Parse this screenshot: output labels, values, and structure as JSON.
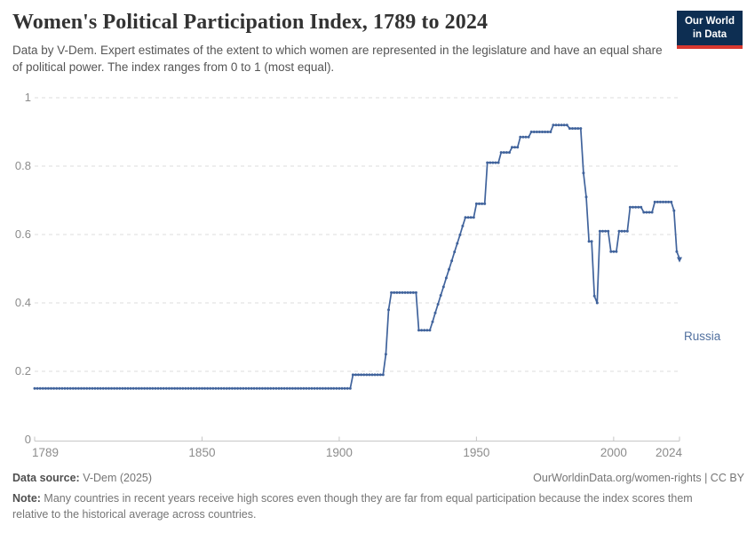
{
  "header": {
    "title": "Women's Political Participation Index, 1789 to 2024",
    "subtitle": "Data by V-Dem. Expert estimates of the extent to which women are represented in the legislature and have an equal share of political power. The index ranges from 0 to 1 (most equal)."
  },
  "logo": {
    "line1": "Our World",
    "line2": "in Data",
    "bg_color": "#0d2e52",
    "accent_color": "#d8382f"
  },
  "chart_data": {
    "type": "line",
    "title": "Women's Political Participation Index, 1789 to 2024",
    "xlabel": "",
    "ylabel": "",
    "xlim": [
      1789,
      2024
    ],
    "ylim": [
      0,
      1
    ],
    "x_ticks": [
      1789,
      1850,
      1900,
      1950,
      2000,
      2024
    ],
    "y_ticks": [
      0,
      0.2,
      0.4,
      0.6,
      0.8,
      1
    ],
    "grid": "horizontal-dashed",
    "legend": "inline-end-label",
    "colors": {
      "line": "#40639c",
      "grid": "#dcdcdc",
      "axis": "#c6c6c6",
      "tick_label": "#8c8c8c",
      "entity_label": "#51709f"
    },
    "series": [
      {
        "name": "Russia",
        "color": "#40639c",
        "runs": [
          {
            "from": 1789,
            "to": 1904,
            "value": 0.15
          },
          {
            "from": 1905,
            "to": 1916,
            "value": 0.19
          },
          {
            "from": 1917,
            "to": 1917,
            "value": 0.25
          },
          {
            "from": 1918,
            "to": 1918,
            "value": 0.38
          },
          {
            "from": 1919,
            "to": 1928,
            "value": 0.43
          },
          {
            "from": 1929,
            "to": 1933,
            "value": 0.32
          },
          {
            "from": 1934,
            "to": 1934,
            "value": 0.345
          },
          {
            "from": 1935,
            "to": 1935,
            "value": 0.371
          },
          {
            "from": 1936,
            "to": 1936,
            "value": 0.396
          },
          {
            "from": 1937,
            "to": 1937,
            "value": 0.422
          },
          {
            "from": 1938,
            "to": 1938,
            "value": 0.447
          },
          {
            "from": 1939,
            "to": 1939,
            "value": 0.473
          },
          {
            "from": 1940,
            "to": 1940,
            "value": 0.498
          },
          {
            "from": 1941,
            "to": 1941,
            "value": 0.523
          },
          {
            "from": 1942,
            "to": 1942,
            "value": 0.549
          },
          {
            "from": 1943,
            "to": 1943,
            "value": 0.574
          },
          {
            "from": 1944,
            "to": 1944,
            "value": 0.599
          },
          {
            "from": 1945,
            "to": 1945,
            "value": 0.625
          },
          {
            "from": 1946,
            "to": 1949,
            "value": 0.65
          },
          {
            "from": 1950,
            "to": 1953,
            "value": 0.69
          },
          {
            "from": 1954,
            "to": 1958,
            "value": 0.81
          },
          {
            "from": 1959,
            "to": 1962,
            "value": 0.84
          },
          {
            "from": 1963,
            "to": 1965,
            "value": 0.855
          },
          {
            "from": 1966,
            "to": 1969,
            "value": 0.885
          },
          {
            "from": 1970,
            "to": 1977,
            "value": 0.9
          },
          {
            "from": 1978,
            "to": 1983,
            "value": 0.92
          },
          {
            "from": 1984,
            "to": 1988,
            "value": 0.91
          },
          {
            "from": 1989,
            "to": 1989,
            "value": 0.78
          },
          {
            "from": 1990,
            "to": 1990,
            "value": 0.71
          },
          {
            "from": 1991,
            "to": 1992,
            "value": 0.58
          },
          {
            "from": 1993,
            "to": 1993,
            "value": 0.42
          },
          {
            "from": 1994,
            "to": 1994,
            "value": 0.4
          },
          {
            "from": 1995,
            "to": 1998,
            "value": 0.61
          },
          {
            "from": 1999,
            "to": 2001,
            "value": 0.55
          },
          {
            "from": 2002,
            "to": 2005,
            "value": 0.61
          },
          {
            "from": 2006,
            "to": 2010,
            "value": 0.68
          },
          {
            "from": 2011,
            "to": 2014,
            "value": 0.665
          },
          {
            "from": 2015,
            "to": 2021,
            "value": 0.695
          },
          {
            "from": 2022,
            "to": 2022,
            "value": 0.67
          },
          {
            "from": 2023,
            "to": 2023,
            "value": 0.55
          },
          {
            "from": 2024,
            "to": 2024,
            "value": 0.53
          }
        ]
      }
    ]
  },
  "footer": {
    "source_label": "Data source:",
    "source_value": " V-Dem (2025)",
    "link": "OurWorldinData.org/women-rights | CC BY",
    "note_label": "Note:",
    "note_text": " Many countries in recent years receive high scores even though they are far from equal participation because the index scores them relative to the historical average across countries."
  }
}
